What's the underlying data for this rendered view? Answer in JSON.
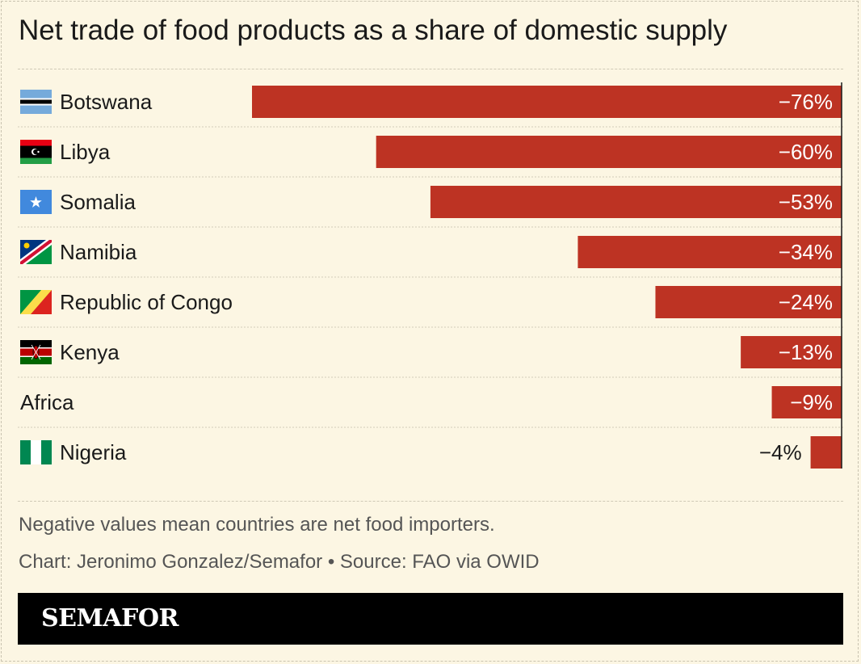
{
  "title": "Net trade of food products as a share of domestic supply",
  "chart_data": {
    "type": "bar",
    "orientation": "horizontal",
    "categories": [
      "Botswana",
      "Libya",
      "Somalia",
      "Namibia",
      "Republic of Congo",
      "Kenya",
      "Africa",
      "Nigeria"
    ],
    "values": [
      -76,
      -60,
      -53,
      -34,
      -24,
      -13,
      -9,
      -4
    ],
    "value_labels": [
      "−76%",
      "−60%",
      "−53%",
      "−34%",
      "−24%",
      "−13%",
      "−9%",
      "−4%"
    ],
    "flags": [
      "botswana-flag",
      "libya-flag",
      "somalia-flag",
      "namibia-flag",
      "congo-flag",
      "kenya-flag",
      "",
      "nigeria-flag"
    ],
    "bar_color": "#bd3323",
    "xlim": [
      -76,
      0
    ],
    "grid": false
  },
  "footnote": "Negative values mean countries are net food importers.",
  "credit": "Chart: Jeronimo Gonzalez/Semafor • Source: FAO via OWID",
  "brand": "SEMAFOR"
}
